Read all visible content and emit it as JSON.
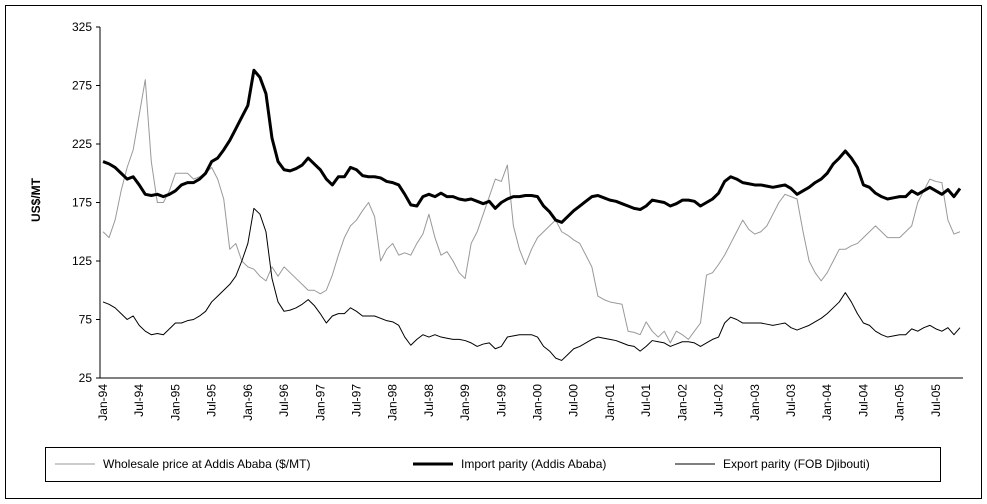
{
  "chart_data": {
    "type": "line",
    "y_label": "US$/MT",
    "categories": [
      "Jan-94",
      null,
      null,
      null,
      null,
      null,
      "Jul-94",
      null,
      null,
      null,
      null,
      null,
      "Jan-95",
      null,
      null,
      null,
      null,
      null,
      "Jul-95",
      null,
      null,
      null,
      null,
      null,
      "Jan-96",
      null,
      null,
      null,
      null,
      null,
      "Jul-96",
      null,
      null,
      null,
      null,
      null,
      "Jan-97",
      null,
      null,
      null,
      null,
      null,
      "Jul-97",
      null,
      null,
      null,
      null,
      null,
      "Jan-98",
      null,
      null,
      null,
      null,
      null,
      "Jul-98",
      null,
      null,
      null,
      null,
      null,
      "Jan-99",
      null,
      null,
      null,
      null,
      null,
      "Jul-99",
      null,
      null,
      null,
      null,
      null,
      "Jan-00",
      null,
      null,
      null,
      null,
      null,
      "Jul-00",
      null,
      null,
      null,
      null,
      null,
      "Jan-01",
      null,
      null,
      null,
      null,
      null,
      "Jul-01",
      null,
      null,
      null,
      null,
      null,
      "Jan-02",
      null,
      null,
      null,
      null,
      null,
      "Jul-02",
      null,
      null,
      null,
      null,
      null,
      "Jan-03",
      null,
      null,
      null,
      null,
      null,
      "Jul-03",
      null,
      null,
      null,
      null,
      null,
      "Jan-04",
      null,
      null,
      null,
      null,
      null,
      "Jul-04",
      null,
      null,
      null,
      null,
      null,
      "Jan-05",
      null,
      null,
      null,
      null,
      null,
      "Jul-05",
      null,
      null,
      null,
      null
    ],
    "series": [
      {
        "name": "Wholesale price at Addis Ababa ($/MT)",
        "color": "#999999",
        "line_width": 1,
        "values": [
          150,
          145,
          160,
          185,
          205,
          220,
          250,
          280,
          210,
          175,
          175,
          185,
          200,
          200,
          200,
          195,
          197,
          200,
          205,
          195,
          178,
          135,
          140,
          125,
          120,
          118,
          112,
          108,
          120,
          112,
          120,
          115,
          110,
          105,
          100,
          100,
          97,
          100,
          113,
          130,
          145,
          155,
          160,
          168,
          175,
          163,
          125,
          135,
          140,
          130,
          132,
          130,
          140,
          148,
          165,
          145,
          130,
          133,
          125,
          115,
          110,
          140,
          150,
          165,
          180,
          195,
          193,
          207,
          155,
          135,
          122,
          135,
          145,
          150,
          155,
          160,
          150,
          147,
          143,
          140,
          130,
          120,
          95,
          92,
          90,
          89,
          88,
          65,
          64,
          62,
          73,
          65,
          60,
          65,
          55,
          65,
          62,
          58,
          65,
          72,
          113,
          115,
          122,
          130,
          140,
          150,
          160,
          152,
          148,
          150,
          155,
          165,
          175,
          182,
          180,
          178,
          150,
          125,
          115,
          108,
          115,
          125,
          135,
          135,
          138,
          140,
          145,
          150,
          155,
          150,
          145,
          145,
          145,
          150,
          155,
          175,
          185,
          195,
          193,
          192,
          160,
          148,
          150
        ]
      },
      {
        "name": "Import parity (Addis Ababa)",
        "color": "#000000",
        "line_width": 3,
        "values": [
          210,
          208,
          205,
          200,
          195,
          197,
          190,
          182,
          181,
          182,
          180,
          182,
          185,
          190,
          192,
          192,
          195,
          200,
          210,
          213,
          220,
          228,
          238,
          248,
          258,
          288,
          282,
          268,
          230,
          210,
          203,
          202,
          204,
          207,
          213,
          208,
          203,
          195,
          190,
          197,
          197,
          205,
          203,
          198,
          197,
          197,
          196,
          193,
          192,
          190,
          182,
          173,
          172,
          180,
          182,
          180,
          183,
          180,
          180,
          178,
          177,
          178,
          176,
          174,
          176,
          170,
          175,
          178,
          180,
          180,
          181,
          181,
          180,
          172,
          167,
          160,
          158,
          163,
          168,
          172,
          176,
          180,
          181,
          179,
          177,
          176,
          174,
          172,
          170,
          169,
          172,
          177,
          176,
          175,
          172,
          174,
          177,
          177,
          176,
          172,
          175,
          178,
          183,
          193,
          197,
          195,
          192,
          191,
          190,
          190,
          189,
          188,
          189,
          190,
          187,
          182,
          185,
          188,
          192,
          195,
          200,
          208,
          213,
          219,
          213,
          205,
          190,
          188,
          183,
          180,
          178,
          179,
          180,
          180,
          185,
          182,
          185,
          188,
          185,
          182,
          186,
          180,
          187
        ]
      },
      {
        "name": "Export parity (FOB Djibouti)",
        "color": "#000000",
        "line_width": 1,
        "values": [
          90,
          88,
          85,
          80,
          75,
          78,
          70,
          65,
          62,
          63,
          62,
          67,
          72,
          72,
          74,
          75,
          78,
          82,
          90,
          95,
          100,
          105,
          112,
          125,
          140,
          170,
          165,
          150,
          110,
          90,
          82,
          83,
          85,
          88,
          92,
          87,
          80,
          72,
          78,
          80,
          80,
          85,
          82,
          78,
          78,
          78,
          76,
          74,
          73,
          70,
          60,
          53,
          58,
          62,
          60,
          62,
          60,
          59,
          58,
          58,
          57,
          55,
          52,
          54,
          55,
          50,
          52,
          60,
          61,
          62,
          62,
          62,
          60,
          52,
          48,
          42,
          40,
          45,
          50,
          52,
          55,
          58,
          60,
          59,
          58,
          57,
          55,
          53,
          52,
          48,
          52,
          57,
          56,
          55,
          52,
          54,
          56,
          56,
          55,
          52,
          55,
          58,
          60,
          72,
          77,
          75,
          72,
          72,
          72,
          72,
          71,
          70,
          71,
          72,
          68,
          66,
          68,
          70,
          73,
          76,
          80,
          85,
          90,
          98,
          90,
          80,
          72,
          70,
          65,
          62,
          60,
          61,
          62,
          62,
          67,
          65,
          68,
          70,
          67,
          65,
          68,
          62,
          68
        ]
      }
    ],
    "ylim": [
      25,
      325
    ],
    "yticks": [
      25,
      75,
      125,
      175,
      225,
      275,
      325
    ],
    "grid": false,
    "legend": "bottom"
  }
}
